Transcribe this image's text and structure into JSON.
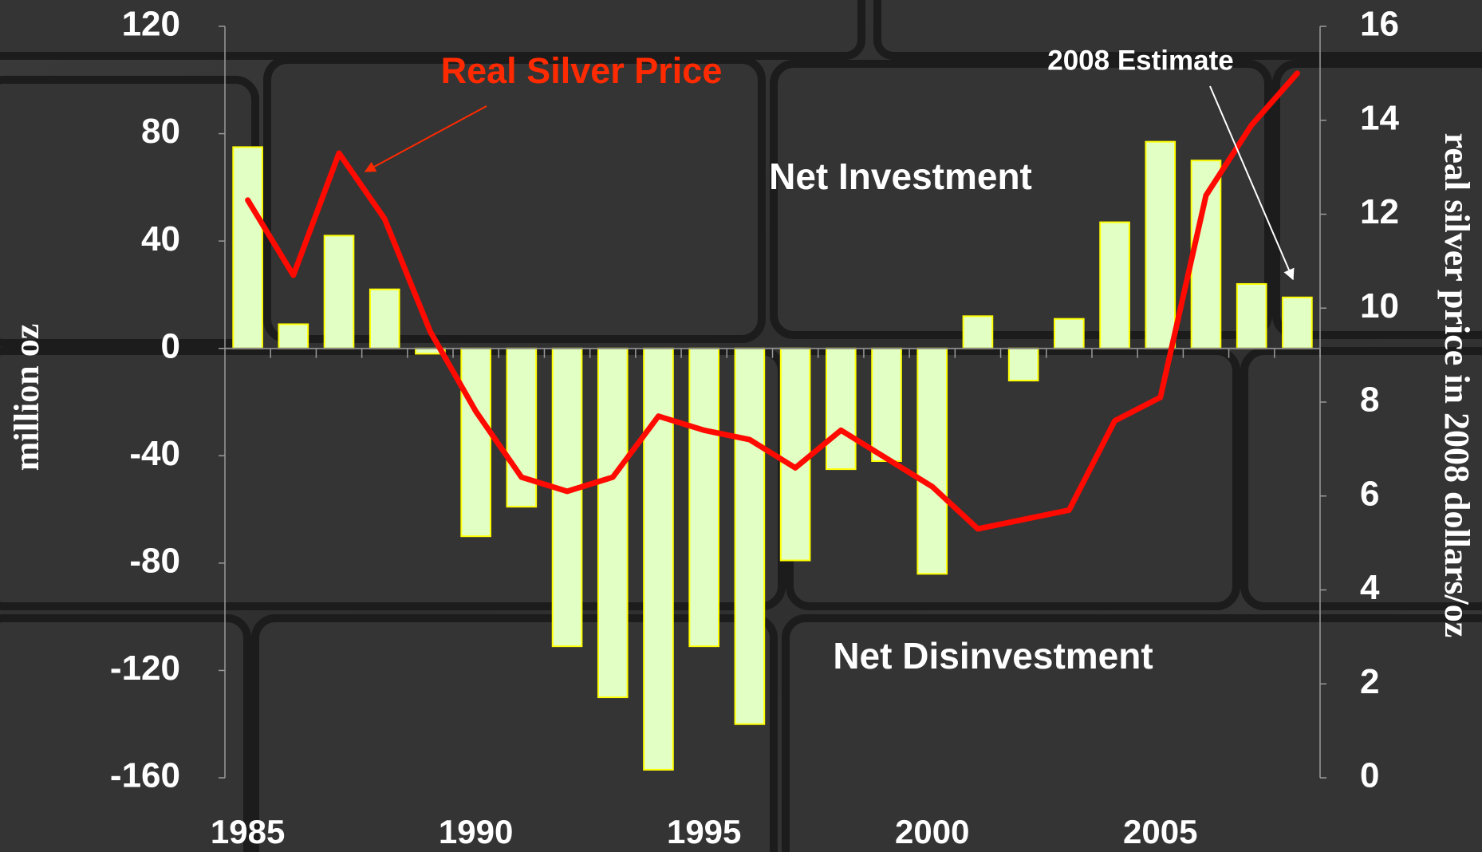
{
  "chart_data": {
    "type": "bar",
    "annotations": [
      "Real Silver Price",
      "2008 Estimate",
      "Net Investment",
      "Net Disinvestment"
    ],
    "y_label": "million oz",
    "y2_label": "real silver price in 2008 dollars/oz",
    "categories": [
      1985,
      null,
      null,
      null,
      null,
      1990,
      null,
      null,
      null,
      null,
      1995,
      null,
      null,
      null,
      null,
      2000,
      null,
      null,
      null,
      null,
      2005,
      null,
      null,
      null
    ],
    "series": [
      {
        "type": "bar",
        "color": "#e2ffc4",
        "values": [
          75,
          9,
          42,
          22,
          -2,
          -70,
          -59,
          -111,
          -130,
          -157,
          -111,
          -140,
          -79,
          -45,
          -42,
          -84,
          12,
          -12,
          11,
          47,
          77,
          70,
          24,
          19
        ]
      },
      {
        "type": "line",
        "axis": "y2",
        "color": "#ff0a00",
        "values": [
          12.3,
          10.7,
          13.3,
          11.9,
          9.5,
          7.8,
          6.4,
          6.1,
          6.4,
          7.7,
          7.4,
          7.2,
          6.6,
          7.4,
          6.8,
          6.2,
          5.3,
          5.5,
          5.7,
          7.6,
          8.1,
          12.4,
          13.9,
          15.0
        ]
      }
    ],
    "ylim": [
      -160,
      120
    ],
    "yticks": [
      -160,
      -120,
      -80,
      -40,
      0,
      40,
      80,
      120
    ],
    "y2lim": [
      0,
      16
    ],
    "y2ticks": [
      0,
      2,
      4,
      6,
      8,
      10,
      12,
      14,
      16
    ]
  }
}
